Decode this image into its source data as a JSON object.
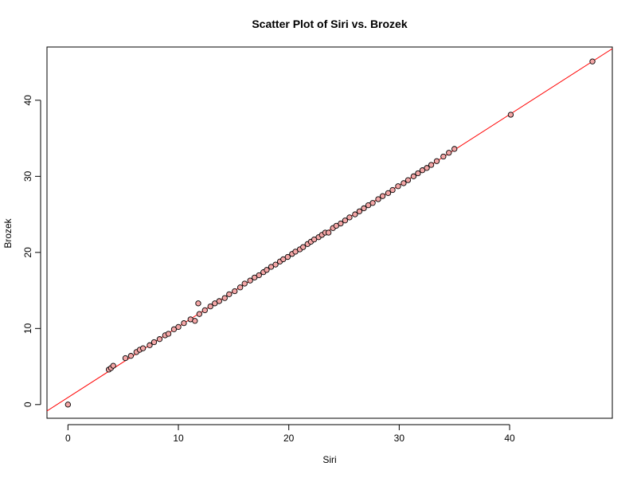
{
  "chart_data": {
    "type": "scatter",
    "title": "Scatter Plot of Siri vs. Brozek",
    "xlabel": "Siri",
    "ylabel": "Brozek",
    "xlim": [
      -1.9,
      49.3
    ],
    "ylim": [
      -1.8,
      47.0
    ],
    "x_ticks": [
      0,
      10,
      20,
      30,
      40
    ],
    "y_ticks": [
      0,
      10,
      20,
      30,
      40
    ],
    "grid": false,
    "legend": "none",
    "colors": {
      "points_fill": "#f4a6a6",
      "points_stroke": "#000000",
      "fit_line": "#ff0000",
      "axes": "#000000"
    },
    "fit_line": {
      "intercept": 0.93,
      "slope": 0.93
    },
    "series": [
      {
        "points": [
          [
            0.0,
            0.0
          ],
          [
            3.7,
            4.6
          ],
          [
            3.9,
            4.8
          ],
          [
            4.1,
            5.1
          ],
          [
            5.2,
            6.1
          ],
          [
            5.7,
            6.4
          ],
          [
            6.2,
            6.9
          ],
          [
            6.5,
            7.2
          ],
          [
            6.8,
            7.4
          ],
          [
            7.4,
            7.8
          ],
          [
            7.8,
            8.2
          ],
          [
            8.3,
            8.6
          ],
          [
            8.8,
            9.1
          ],
          [
            9.1,
            9.3
          ],
          [
            9.6,
            9.9
          ],
          [
            10.0,
            10.2
          ],
          [
            10.5,
            10.7
          ],
          [
            11.1,
            11.2
          ],
          [
            11.5,
            11.0
          ],
          [
            11.8,
            13.3
          ],
          [
            11.9,
            11.9
          ],
          [
            12.4,
            12.4
          ],
          [
            12.9,
            12.9
          ],
          [
            13.3,
            13.3
          ],
          [
            13.7,
            13.6
          ],
          [
            14.2,
            14.0
          ],
          [
            14.6,
            14.5
          ],
          [
            15.1,
            14.9
          ],
          [
            15.6,
            15.4
          ],
          [
            16.0,
            15.9
          ],
          [
            16.5,
            16.3
          ],
          [
            16.9,
            16.7
          ],
          [
            17.3,
            17.0
          ],
          [
            17.7,
            17.4
          ],
          [
            18.0,
            17.7
          ],
          [
            18.4,
            18.1
          ],
          [
            18.8,
            18.4
          ],
          [
            19.2,
            18.8
          ],
          [
            19.5,
            19.1
          ],
          [
            19.9,
            19.4
          ],
          [
            20.3,
            19.8
          ],
          [
            20.6,
            20.1
          ],
          [
            21.0,
            20.4
          ],
          [
            21.3,
            20.7
          ],
          [
            21.7,
            21.1
          ],
          [
            22.0,
            21.4
          ],
          [
            22.3,
            21.7
          ],
          [
            22.7,
            22.0
          ],
          [
            23.0,
            22.3
          ],
          [
            23.3,
            22.6
          ],
          [
            23.6,
            22.6
          ],
          [
            24.0,
            23.2
          ],
          [
            24.3,
            23.5
          ],
          [
            24.7,
            23.8
          ],
          [
            25.1,
            24.2
          ],
          [
            25.5,
            24.6
          ],
          [
            26.0,
            25.0
          ],
          [
            26.4,
            25.4
          ],
          [
            26.8,
            25.8
          ],
          [
            27.2,
            26.2
          ],
          [
            27.6,
            26.5
          ],
          [
            28.1,
            27.0
          ],
          [
            28.5,
            27.4
          ],
          [
            29.0,
            27.8
          ],
          [
            29.4,
            28.2
          ],
          [
            29.9,
            28.7
          ],
          [
            30.4,
            29.1
          ],
          [
            30.8,
            29.5
          ],
          [
            31.3,
            30.0
          ],
          [
            31.7,
            30.4
          ],
          [
            32.1,
            30.8
          ],
          [
            32.5,
            31.1
          ],
          [
            32.9,
            31.5
          ],
          [
            33.4,
            32.0
          ],
          [
            34.0,
            32.6
          ],
          [
            34.5,
            33.1
          ],
          [
            35.0,
            33.6
          ],
          [
            40.1,
            38.1
          ],
          [
            47.5,
            45.1
          ]
        ]
      }
    ]
  }
}
